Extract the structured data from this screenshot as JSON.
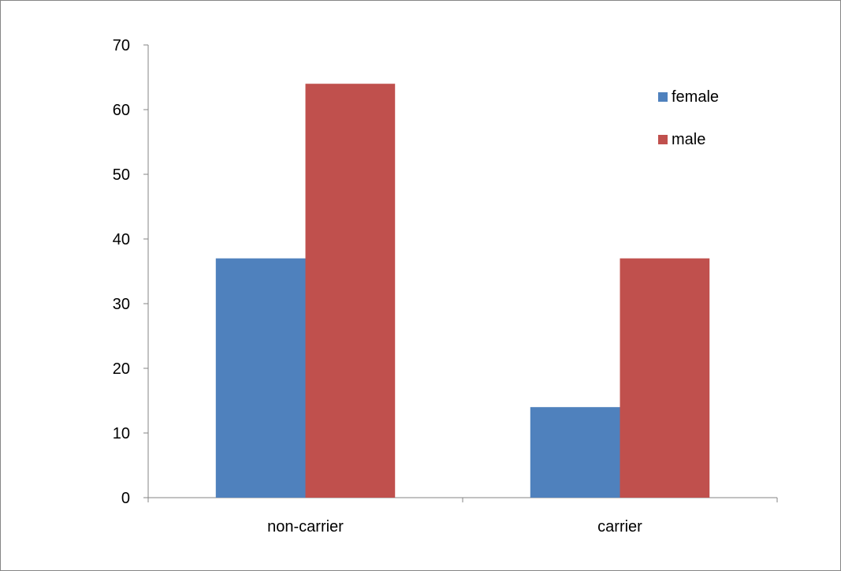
{
  "chart_data": {
    "type": "bar",
    "categories": [
      "non-carrier",
      "carrier"
    ],
    "series": [
      {
        "name": "female",
        "values": [
          37,
          14
        ],
        "color": "#4F81BD"
      },
      {
        "name": "male",
        "values": [
          64,
          37
        ],
        "color": "#C0504D"
      }
    ],
    "title": "",
    "xlabel": "",
    "ylabel": "",
    "ylim": [
      0,
      70
    ],
    "y_ticks": [
      0,
      10,
      20,
      30,
      40,
      50,
      60,
      70
    ],
    "grid": false,
    "legend_position": "top-right",
    "axis_color": "#868686",
    "border_color": "#868686"
  }
}
